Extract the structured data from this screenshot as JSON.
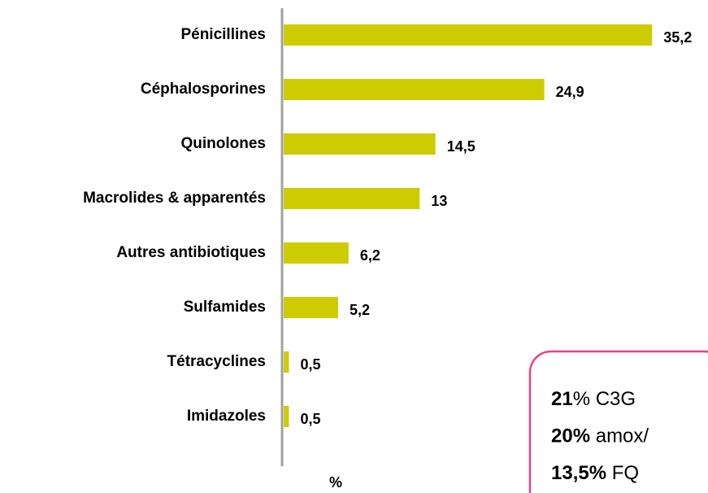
{
  "chart_data": {
    "type": "bar",
    "orientation": "horizontal",
    "categories": [
      "Pénicillines",
      "Céphalosporines",
      "Quinolones",
      "Macrolides & apparentés",
      "Autres antibiotiques",
      "Sulfamides",
      "Tétracyclines",
      "Imidazoles"
    ],
    "values": [
      35.2,
      24.9,
      14.5,
      13,
      6.2,
      5.2,
      0.5,
      0.5
    ],
    "value_labels": [
      "35,2",
      "24,9",
      "14,5",
      "13",
      "6,2",
      "5,2",
      "0,5",
      "0,5"
    ],
    "color": "#cccc00",
    "xlim": [
      0,
      40
    ],
    "x_label": "%",
    "annotation": [
      {
        "bold": "21",
        "text": "% C3G"
      },
      {
        "bold": "20%",
        "text": " amox/"
      },
      {
        "bold": "13,5%",
        "text": " FQ"
      }
    ]
  }
}
